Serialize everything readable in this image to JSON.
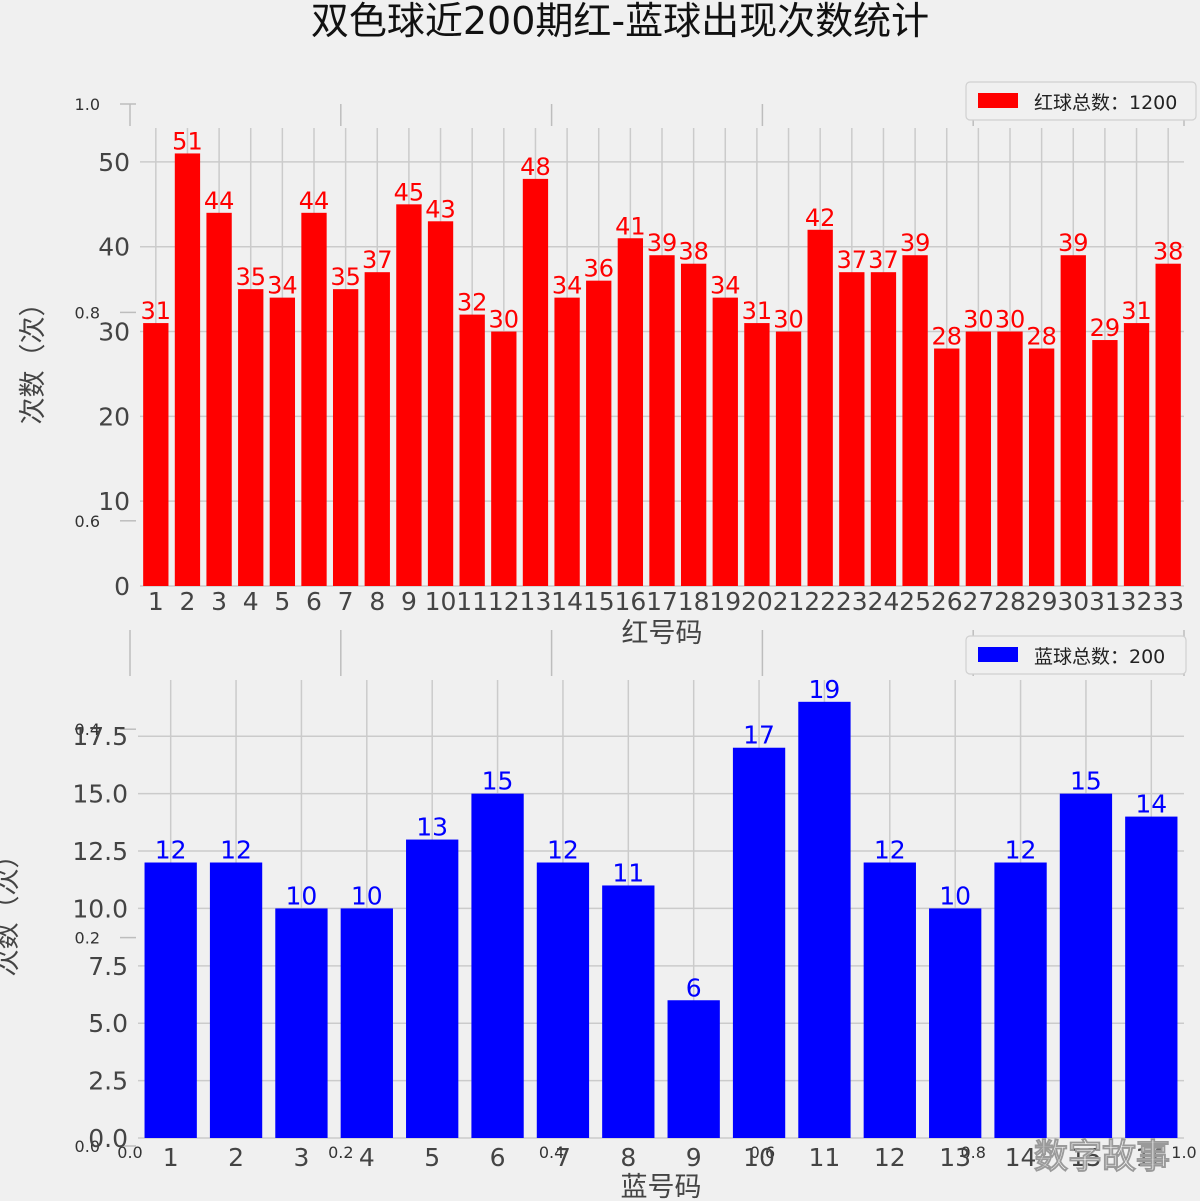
{
  "figure_title": "双色球近200期红-蓝球出现次数统计",
  "watermark": "数字故事",
  "background_axis_ticks": {
    "x": [
      "0.0",
      "0.2",
      "0.4",
      "0.6",
      "0.8",
      "1.0"
    ],
    "y": [
      "0.0",
      "0.2",
      "0.4",
      "0.6",
      "0.8",
      "1.0"
    ]
  },
  "colors": {
    "red": "#ff0000",
    "blue": "#0000ff",
    "background": "#f0f0f0",
    "grid": "#cbcbcb"
  },
  "chart_data": [
    {
      "type": "bar",
      "title": "",
      "xlabel": "红号码",
      "ylabel": "次数（次）",
      "ylim": [
        0,
        54
      ],
      "yticks": [
        "0",
        "10",
        "20",
        "30",
        "40",
        "50"
      ],
      "grid": true,
      "legend_position": "top-right",
      "color": "#ff0000",
      "categories": [
        "1",
        "2",
        "3",
        "4",
        "5",
        "6",
        "7",
        "8",
        "9",
        "10",
        "11",
        "12",
        "13",
        "14",
        "15",
        "16",
        "17",
        "18",
        "19",
        "20",
        "21",
        "22",
        "23",
        "24",
        "25",
        "26",
        "27",
        "28",
        "29",
        "30",
        "31",
        "32",
        "33"
      ],
      "series": [
        {
          "name": "红球总数：1200",
          "values": [
            31,
            51,
            44,
            35,
            34,
            44,
            35,
            37,
            45,
            43,
            32,
            30,
            48,
            34,
            36,
            41,
            39,
            38,
            34,
            31,
            30,
            42,
            37,
            37,
            39,
            28,
            30,
            30,
            28,
            39,
            29,
            31,
            38
          ]
        }
      ]
    },
    {
      "type": "bar",
      "title": "",
      "xlabel": "蓝号码",
      "ylabel": "次数（次）",
      "ylim": [
        0,
        19.95
      ],
      "yticks": [
        "0.0",
        "2.5",
        "5.0",
        "7.5",
        "10.0",
        "12.5",
        "15.0",
        "17.5"
      ],
      "grid": true,
      "legend_position": "top-right",
      "color": "#0000ff",
      "categories": [
        "1",
        "2",
        "3",
        "4",
        "5",
        "6",
        "7",
        "8",
        "9",
        "10",
        "11",
        "12",
        "13",
        "14",
        "15",
        "16"
      ],
      "series": [
        {
          "name": "蓝球总数：200",
          "values": [
            12,
            12,
            10,
            10,
            13,
            15,
            12,
            11,
            6,
            17,
            19,
            12,
            10,
            12,
            15,
            14
          ]
        }
      ]
    }
  ]
}
